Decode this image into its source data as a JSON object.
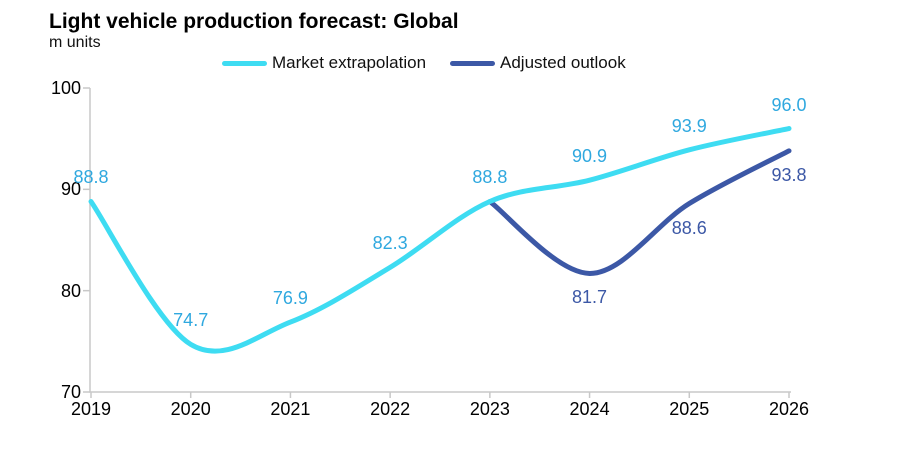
{
  "header": {
    "title": "Light vehicle production forecast: Global",
    "subtitle": "m units"
  },
  "legend": [
    {
      "label": "Market extrapolation",
      "color": "#3EDCF2"
    },
    {
      "label": "Adjusted outlook",
      "color": "#3C58A6"
    }
  ],
  "chart_data": {
    "type": "line",
    "title": "Light vehicle production forecast: Global",
    "ylabel": "m units",
    "xlabel": "",
    "x": [
      2019,
      2020,
      2021,
      2022,
      2023,
      2024,
      2025,
      2026
    ],
    "series": [
      {
        "name": "Market extrapolation",
        "color": "#3EDCF2",
        "label_color": "#2FA8DF",
        "label_position": "above",
        "values": [
          88.8,
          74.7,
          76.9,
          82.3,
          88.8,
          90.9,
          93.9,
          96.0
        ]
      },
      {
        "name": "Adjusted outlook",
        "color": "#3C58A6",
        "label_color": "#3C58A6",
        "label_position": "below",
        "x": [
          2023,
          2024,
          2025,
          2026
        ],
        "values": [
          88.8,
          81.7,
          88.6,
          93.8
        ],
        "skip_first_label": true
      }
    ],
    "ylim": [
      70,
      100
    ],
    "yticks": [
      70,
      80,
      90,
      100
    ],
    "grid": false,
    "smooth": true,
    "legend_position": "top",
    "axis_color": "#C8C8C8",
    "tick_label_color": "#000000"
  }
}
